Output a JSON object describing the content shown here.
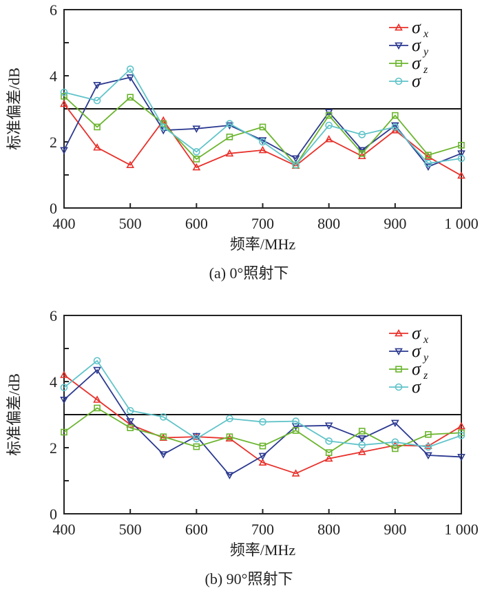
{
  "chart_data": [
    {
      "type": "line",
      "caption": "(a) 0°照射下",
      "xlabel": "频率/MHz",
      "ylabel": "标准偏差/dB",
      "x": [
        400,
        450,
        500,
        550,
        600,
        650,
        700,
        750,
        800,
        850,
        900,
        950,
        1000
      ],
      "xticks": [
        400,
        500,
        600,
        700,
        800,
        900,
        1000
      ],
      "xtick_labels": [
        "400",
        "500",
        "600",
        "700",
        "800",
        "900",
        "1 000"
      ],
      "yticks": [
        0,
        2,
        4,
        6
      ],
      "ytick_labels": [
        "0",
        "2",
        "4",
        "6"
      ],
      "xlim": [
        400,
        1000
      ],
      "ylim": [
        0,
        6
      ],
      "reference_line": 3,
      "legend_position": "top-right",
      "series": [
        {
          "name": "σx",
          "base": "σ",
          "sub": "x",
          "color": "#e8302a",
          "marker": "triangle-up",
          "values": [
            3.15,
            1.83,
            1.3,
            2.65,
            1.23,
            1.65,
            1.75,
            1.28,
            2.08,
            1.57,
            2.35,
            1.55,
            0.98
          ]
        },
        {
          "name": "σy",
          "base": "σ",
          "sub": "y",
          "color": "#2b3990",
          "marker": "triangle-down",
          "values": [
            1.75,
            3.72,
            3.95,
            2.35,
            2.4,
            2.5,
            2.05,
            1.5,
            2.9,
            1.75,
            2.5,
            1.25,
            1.65
          ]
        },
        {
          "name": "σz",
          "base": "σ",
          "sub": "z",
          "color": "#6ab42d",
          "marker": "square",
          "values": [
            3.38,
            2.45,
            3.35,
            2.55,
            1.48,
            2.15,
            2.45,
            1.3,
            2.8,
            1.65,
            2.8,
            1.6,
            1.9
          ]
        },
        {
          "name": "σ",
          "base": "σ",
          "sub": "",
          "color": "#5fc3c9",
          "marker": "circle",
          "values": [
            3.5,
            3.25,
            4.2,
            2.45,
            1.7,
            2.55,
            2.0,
            1.3,
            2.5,
            2.22,
            2.45,
            1.35,
            1.5
          ]
        }
      ]
    },
    {
      "type": "line",
      "caption": "(b) 90°照射下",
      "xlabel": "频率/MHz",
      "ylabel": "标准偏差/dB",
      "x": [
        400,
        450,
        500,
        550,
        600,
        650,
        700,
        750,
        800,
        850,
        900,
        950,
        1000
      ],
      "xticks": [
        400,
        500,
        600,
        700,
        800,
        900,
        1000
      ],
      "xtick_labels": [
        "400",
        "500",
        "600",
        "700",
        "800",
        "900",
        "1 000"
      ],
      "yticks": [
        0,
        2,
        4,
        6
      ],
      "ytick_labels": [
        "0",
        "2",
        "4",
        "6"
      ],
      "xlim": [
        400,
        1000
      ],
      "ylim": [
        0,
        6
      ],
      "reference_line": 3,
      "legend_position": "top-right",
      "series": [
        {
          "name": "σx",
          "base": "σ",
          "sub": "x",
          "color": "#e8302a",
          "marker": "triangle-up",
          "values": [
            4.2,
            3.45,
            2.7,
            2.3,
            2.33,
            2.28,
            1.55,
            1.22,
            1.67,
            1.87,
            2.07,
            2.05,
            2.65
          ]
        },
        {
          "name": "σy",
          "base": "σ",
          "sub": "y",
          "color": "#2b3990",
          "marker": "triangle-down",
          "values": [
            3.45,
            4.35,
            2.8,
            1.8,
            2.35,
            1.17,
            1.75,
            2.65,
            2.67,
            2.28,
            2.75,
            1.77,
            1.72
          ]
        },
        {
          "name": "σz",
          "base": "σ",
          "sub": "z",
          "color": "#6ab42d",
          "marker": "square",
          "values": [
            2.47,
            3.2,
            2.6,
            2.33,
            2.03,
            2.33,
            2.05,
            2.52,
            1.85,
            2.5,
            1.97,
            2.4,
            2.45
          ]
        },
        {
          "name": "σ",
          "base": "σ",
          "sub": "",
          "color": "#5fc3c9",
          "marker": "circle",
          "values": [
            3.82,
            4.63,
            3.12,
            2.93,
            2.27,
            2.88,
            2.78,
            2.8,
            2.2,
            2.08,
            2.17,
            2.02,
            2.37
          ]
        }
      ]
    }
  ]
}
